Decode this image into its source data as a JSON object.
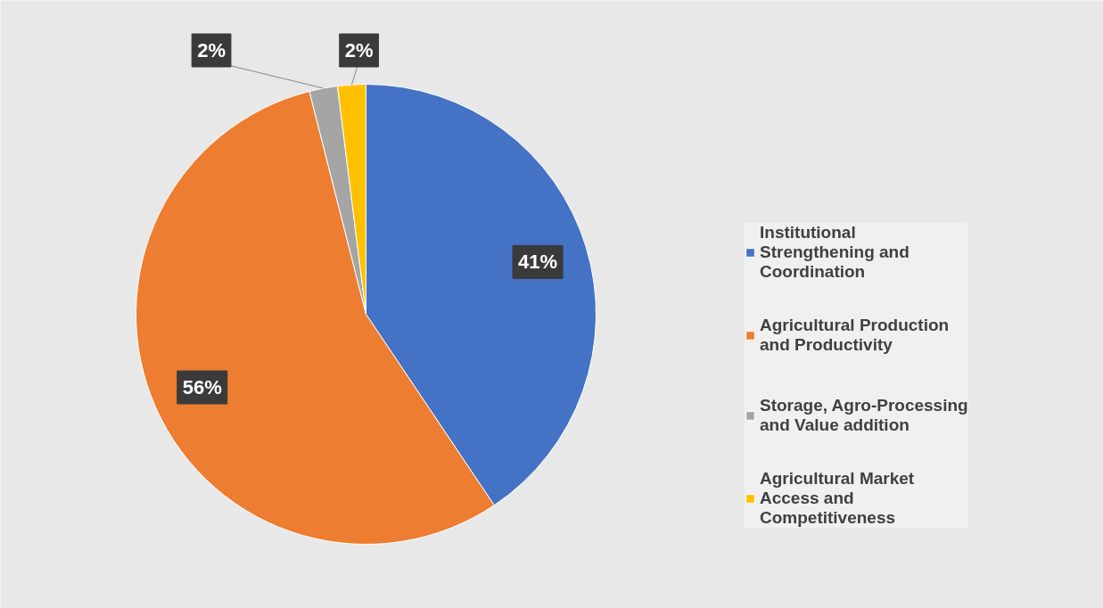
{
  "chart_data": {
    "type": "pie",
    "categories": [
      "Institutional Strengthening and Coordination",
      "Agricultural Production and Productivity",
      "Storage, Agro-Processing and Value addition",
      "Agricultural Market Access and Competitiveness"
    ],
    "values": [
      41,
      56,
      2,
      2
    ],
    "colors": [
      "#4472c4",
      "#ed7d31",
      "#a5a5a5",
      "#ffc000"
    ],
    "value_labels": [
      "41%",
      "56%",
      "2%",
      "2%"
    ],
    "legend": "right"
  }
}
